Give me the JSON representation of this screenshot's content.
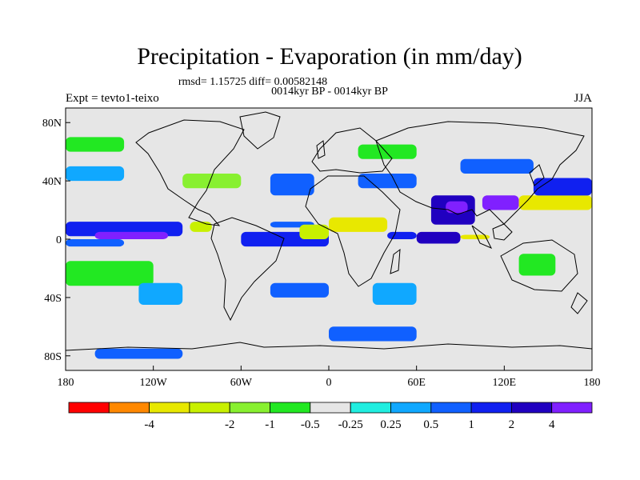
{
  "chart_data": {
    "type": "heatmap",
    "title": "Precipitation - Evaporation (in mm/day)",
    "stats_text": "rmsd= 1.15725 diff= 0.00582148",
    "subtitle": "0014kyr BP - 0014kyr BP",
    "left_label": "Expt = tevto1-teixo",
    "right_label": "JJA",
    "x_range": [
      -180,
      180
    ],
    "y_range": [
      -90,
      90
    ],
    "x_ticks": [
      {
        "value": -180,
        "label": "180"
      },
      {
        "value": -120,
        "label": "120W"
      },
      {
        "value": -60,
        "label": "60W"
      },
      {
        "value": 0,
        "label": "0"
      },
      {
        "value": 60,
        "label": "60E"
      },
      {
        "value": 120,
        "label": "120E"
      },
      {
        "value": 180,
        "label": "180"
      }
    ],
    "y_ticks": [
      {
        "value": 80,
        "label": "80N"
      },
      {
        "value": 40,
        "label": "40N"
      },
      {
        "value": 0,
        "label": "0"
      },
      {
        "value": -40,
        "label": "40S"
      },
      {
        "value": -80,
        "label": "80S"
      }
    ],
    "colorbar": {
      "colors": [
        "#ff0000",
        "#ff8800",
        "#e8e800",
        "#c8f000",
        "#88f030",
        "#22e822",
        "#e6e6e6",
        "#20eee0",
        "#10a8ff",
        "#1060ff",
        "#1020f0",
        "#2000c0",
        "#8020ff"
      ],
      "boundary_labels": [
        {
          "index": 2,
          "label": "-4"
        },
        {
          "index": 4,
          "label": "-2"
        },
        {
          "index": 5,
          "label": "-1"
        },
        {
          "index": 6,
          "label": "-0.5"
        },
        {
          "index": 7,
          "label": "-0.25"
        },
        {
          "index": 8,
          "label": "0.25"
        },
        {
          "index": 9,
          "label": "0.5"
        },
        {
          "index": 10,
          "label": "1"
        },
        {
          "index": 11,
          "label": "2"
        },
        {
          "index": 12,
          "label": "4"
        }
      ]
    },
    "field_regions": [
      {
        "lon": [
          -180,
          -100
        ],
        "lat": [
          2,
          12
        ],
        "level": 10
      },
      {
        "lon": [
          -160,
          -110
        ],
        "lat": [
          0,
          5
        ],
        "level": 12
      },
      {
        "lon": [
          -180,
          -140
        ],
        "lat": [
          -5,
          0
        ],
        "level": 9
      },
      {
        "lon": [
          -95,
          -80
        ],
        "lat": [
          5,
          12
        ],
        "level": 3
      },
      {
        "lon": [
          -60,
          0
        ],
        "lat": [
          -5,
          5
        ],
        "level": 10
      },
      {
        "lon": [
          -40,
          -10
        ],
        "lat": [
          8,
          12
        ],
        "level": 9
      },
      {
        "lon": [
          0,
          40
        ],
        "lat": [
          5,
          15
        ],
        "level": 2
      },
      {
        "lon": [
          -20,
          0
        ],
        "lat": [
          0,
          10
        ],
        "level": 3
      },
      {
        "lon": [
          40,
          60
        ],
        "lat": [
          0,
          5
        ],
        "level": 10
      },
      {
        "lon": [
          60,
          90
        ],
        "lat": [
          -3,
          5
        ],
        "level": 11
      },
      {
        "lon": [
          90,
          110
        ],
        "lat": [
          0,
          3
        ],
        "level": 2
      },
      {
        "lon": [
          70,
          100
        ],
        "lat": [
          10,
          30
        ],
        "level": 11
      },
      {
        "lon": [
          80,
          95
        ],
        "lat": [
          18,
          26
        ],
        "level": 12
      },
      {
        "lon": [
          105,
          130
        ],
        "lat": [
          20,
          30
        ],
        "level": 12
      },
      {
        "lon": [
          130,
          180
        ],
        "lat": [
          20,
          30
        ],
        "level": 2
      },
      {
        "lon": [
          140,
          180
        ],
        "lat": [
          30,
          42
        ],
        "level": 10
      },
      {
        "lon": [
          -170,
          -140
        ],
        "lat": [
          -25,
          -18
        ],
        "level": 2
      },
      {
        "lon": [
          -180,
          -120
        ],
        "lat": [
          -32,
          -15
        ],
        "level": 5
      },
      {
        "lon": [
          -130,
          -100
        ],
        "lat": [
          -45,
          -30
        ],
        "level": 8
      },
      {
        "lon": [
          -40,
          0
        ],
        "lat": [
          -40,
          -30
        ],
        "level": 9
      },
      {
        "lon": [
          30,
          60
        ],
        "lat": [
          -45,
          -30
        ],
        "level": 8
      },
      {
        "lon": [
          130,
          155
        ],
        "lat": [
          -25,
          -10
        ],
        "level": 5
      },
      {
        "lon": [
          -160,
          -100
        ],
        "lat": [
          -82,
          -75
        ],
        "level": 9
      },
      {
        "lon": [
          0,
          60
        ],
        "lat": [
          -70,
          -60
        ],
        "level": 9
      },
      {
        "lon": [
          -100,
          -60
        ],
        "lat": [
          35,
          45
        ],
        "level": 4
      },
      {
        "lon": [
          -40,
          -10
        ],
        "lat": [
          30,
          45
        ],
        "level": 9
      },
      {
        "lon": [
          20,
          60
        ],
        "lat": [
          35,
          45
        ],
        "level": 9
      },
      {
        "lon": [
          20,
          60
        ],
        "lat": [
          55,
          65
        ],
        "level": 5
      },
      {
        "lon": [
          90,
          140
        ],
        "lat": [
          45,
          55
        ],
        "level": 9
      },
      {
        "lon": [
          -180,
          -140
        ],
        "lat": [
          40,
          50
        ],
        "level": 8
      },
      {
        "lon": [
          -180,
          -140
        ],
        "lat": [
          60,
          70
        ],
        "level": 5
      }
    ]
  }
}
